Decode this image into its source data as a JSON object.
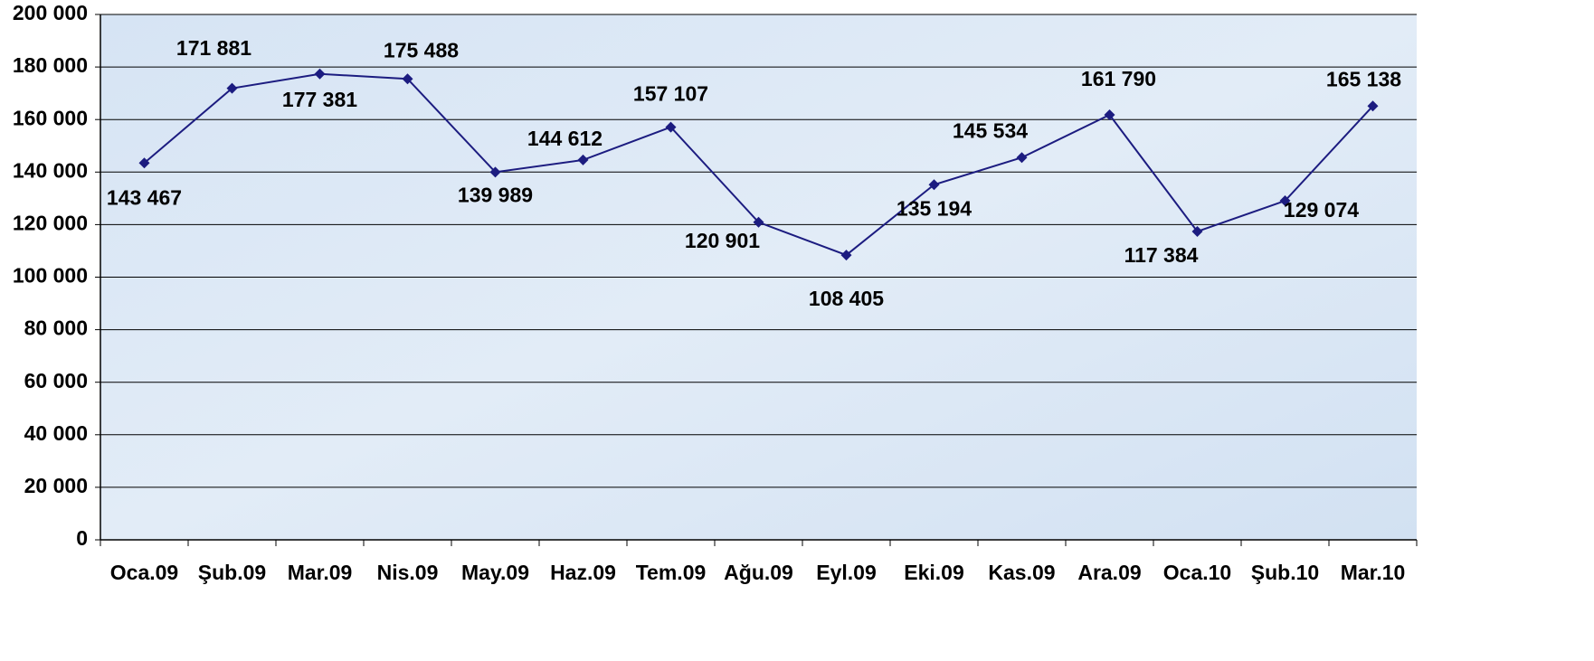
{
  "chart_data": {
    "type": "line",
    "categories": [
      "Oca.09",
      "Şub.09",
      "Mar.09",
      "Nis.09",
      "May.09",
      "Haz.09",
      "Tem.09",
      "Ağu.09",
      "Eyl.09",
      "Eki.09",
      "Kas.09",
      "Ara.09",
      "Oca.10",
      "Şub.10",
      "Mar.10"
    ],
    "series": [
      {
        "color": "#1c1c80",
        "values": [
          143467,
          171881,
          177381,
          175488,
          139989,
          144612,
          157107,
          120901,
          108405,
          135194,
          145534,
          161790,
          117384,
          129074,
          165138
        ],
        "value_labels": [
          "143 467",
          "171 881",
          "177 381",
          "175 488",
          "139 989",
          "144 612",
          "157 107",
          "120 901",
          "108 405",
          "135 194",
          "145 534",
          "161 790",
          "117 384",
          "129 074",
          "165 138"
        ]
      }
    ],
    "ylim": [
      0,
      200000
    ],
    "yticks": [
      0,
      {
        "value": 20000,
        "label": "20 000"
      },
      {
        "value": 40000,
        "label": "40 000"
      },
      {
        "value": 60000,
        "label": "60 000"
      },
      {
        "value": 80000,
        "label": "80 000"
      },
      {
        "value": 100000,
        "label": "100 000"
      },
      {
        "value": 120000,
        "label": "120 000"
      },
      {
        "value": 140000,
        "label": "140 000"
      },
      {
        "value": 160000,
        "label": "160 000"
      },
      {
        "value": 180000,
        "label": "180 000"
      },
      {
        "value": 200000,
        "label": "200 000"
      }
    ],
    "grid": true
  }
}
